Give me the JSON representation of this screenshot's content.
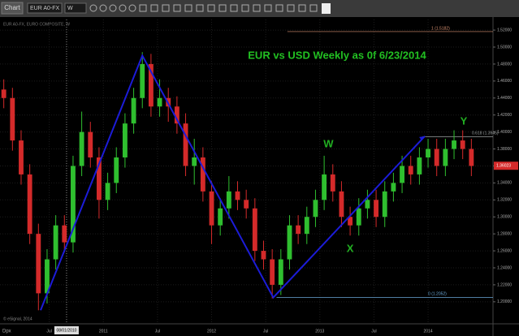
{
  "toolbar": {
    "tab": "Chart",
    "symbol": "EUR A0-FX",
    "interval": "W",
    "corner": "Dpx"
  },
  "chart_data": {
    "type": "candlestick",
    "title": "EUR vs USD Weekly as 0f 6/23/2014",
    "info": "EUR A0-FX, EURO COMPOSITE, W",
    "copyright": "© eSignal, 2014",
    "crosshair": {
      "x": 2010.66,
      "label": "08/01/2010"
    },
    "up_color": "#2fbf2f",
    "down_color": "#d42a2a",
    "x": [
      2010.08,
      2010.16,
      2010.24,
      2010.32,
      2010.4,
      2010.48,
      2010.56,
      2010.64,
      2010.72,
      2010.8,
      2010.88,
      2010.96,
      2011.04,
      2011.12,
      2011.2,
      2011.28,
      2011.36,
      2011.44,
      2011.52,
      2011.6,
      2011.68,
      2011.76,
      2011.84,
      2011.92,
      2012.0,
      2012.08,
      2012.16,
      2012.24,
      2012.32,
      2012.4,
      2012.48,
      2012.56,
      2012.64,
      2012.72,
      2012.8,
      2012.88,
      2012.96,
      2013.04,
      2013.12,
      2013.2,
      2013.28,
      2013.36,
      2013.44,
      2013.52,
      2013.6,
      2013.68,
      2013.76,
      2013.84,
      2013.92,
      2014.0,
      2014.08,
      2014.16,
      2014.24,
      2014.32,
      2014.4
    ],
    "open": [
      1.45,
      1.44,
      1.39,
      1.35,
      1.28,
      1.21,
      1.25,
      1.29,
      1.27,
      1.36,
      1.4,
      1.37,
      1.32,
      1.34,
      1.37,
      1.41,
      1.44,
      1.48,
      1.43,
      1.44,
      1.43,
      1.41,
      1.36,
      1.37,
      1.33,
      1.29,
      1.31,
      1.33,
      1.32,
      1.31,
      1.26,
      1.25,
      1.22,
      1.25,
      1.29,
      1.28,
      1.3,
      1.32,
      1.35,
      1.33,
      1.3,
      1.29,
      1.31,
      1.32,
      1.3,
      1.33,
      1.34,
      1.36,
      1.35,
      1.37,
      1.38,
      1.36,
      1.38,
      1.39,
      1.38
    ],
    "high": [
      1.462,
      1.452,
      1.402,
      1.362,
      1.292,
      1.262,
      1.302,
      1.302,
      1.372,
      1.424,
      1.412,
      1.382,
      1.352,
      1.382,
      1.422,
      1.452,
      1.494,
      1.492,
      1.462,
      1.452,
      1.442,
      1.422,
      1.392,
      1.382,
      1.342,
      1.322,
      1.348,
      1.342,
      1.332,
      1.322,
      1.272,
      1.262,
      1.262,
      1.302,
      1.302,
      1.312,
      1.332,
      1.372,
      1.362,
      1.342,
      1.312,
      1.322,
      1.332,
      1.332,
      1.342,
      1.352,
      1.372,
      1.372,
      1.382,
      1.392,
      1.392,
      1.392,
      1.402,
      1.402,
      1.392
    ],
    "low": [
      1.428,
      1.378,
      1.338,
      1.268,
      1.19,
      1.198,
      1.238,
      1.258,
      1.258,
      1.348,
      1.358,
      1.298,
      1.308,
      1.328,
      1.358,
      1.398,
      1.428,
      1.418,
      1.418,
      1.412,
      1.398,
      1.348,
      1.338,
      1.318,
      1.268,
      1.278,
      1.298,
      1.308,
      1.298,
      1.248,
      1.238,
      1.204,
      1.208,
      1.238,
      1.268,
      1.268,
      1.288,
      1.308,
      1.318,
      1.288,
      1.278,
      1.278,
      1.298,
      1.288,
      1.288,
      1.318,
      1.328,
      1.338,
      1.338,
      1.358,
      1.348,
      1.348,
      1.368,
      1.368,
      1.348
    ],
    "close": [
      1.44,
      1.39,
      1.35,
      1.28,
      1.21,
      1.25,
      1.29,
      1.27,
      1.36,
      1.4,
      1.37,
      1.32,
      1.34,
      1.37,
      1.41,
      1.44,
      1.48,
      1.43,
      1.44,
      1.43,
      1.41,
      1.36,
      1.37,
      1.33,
      1.29,
      1.31,
      1.33,
      1.32,
      1.31,
      1.26,
      1.25,
      1.22,
      1.25,
      1.29,
      1.28,
      1.3,
      1.32,
      1.35,
      1.33,
      1.3,
      1.29,
      1.31,
      1.32,
      1.3,
      1.33,
      1.34,
      1.36,
      1.35,
      1.37,
      1.38,
      1.36,
      1.38,
      1.39,
      1.38,
      1.36
    ],
    "last_price": 1.36023,
    "trend_line": {
      "color": "#1c1cd8",
      "x": [
        2010.42,
        2011.36,
        2012.57,
        2013.97
      ],
      "y": [
        1.19,
        1.49,
        1.205,
        1.395
      ]
    },
    "levels": [
      {
        "value": 1.5182,
        "label": "1 (1.5182)",
        "color": "#d89070",
        "x_start": 2012.7
      },
      {
        "value": 1.3945,
        "label": "0.618 (1.3945)",
        "color": "#9aa0a0",
        "x_start": 2013.95
      },
      {
        "value": 1.2052,
        "label": "0 (1.2052)",
        "color": "#6aa8d8",
        "x_start": 2012.6
      }
    ],
    "annotations": [
      {
        "text": "W",
        "x": 2013.08,
        "y": 1.385
      },
      {
        "text": "X",
        "x": 2013.28,
        "y": 1.262
      },
      {
        "text": "Y",
        "x": 2014.33,
        "y": 1.412
      }
    ],
    "xlim": [
      2010.045,
      2014.6
    ],
    "ylim": [
      1.175,
      1.5325
    ],
    "xticks": [
      {
        "value": 2010.5,
        "label": "Jul"
      },
      2011,
      {
        "value": 2011.5,
        "label": "Jul"
      },
      2012,
      {
        "value": 2012.5,
        "label": "Jul"
      },
      2013,
      {
        "value": 2013.5,
        "label": "Jul"
      },
      2014
    ],
    "yticks": [
      {
        "value": 1.2,
        "label": "1.20000"
      },
      {
        "value": 1.22,
        "label": "1.22000"
      },
      {
        "value": 1.24,
        "label": "1.24000"
      },
      {
        "value": 1.26,
        "label": "1.26000"
      },
      {
        "value": 1.28,
        "label": "1.28000"
      },
      {
        "value": 1.3,
        "label": "1.30000"
      },
      {
        "value": 1.32,
        "label": "1.32000"
      },
      {
        "value": 1.34,
        "label": "1.34000"
      },
      {
        "value": 1.36,
        "label": "1.36000"
      },
      {
        "value": 1.38,
        "label": "1.38000"
      },
      {
        "value": 1.4,
        "label": "1.40000"
      },
      {
        "value": 1.42,
        "label": "1.42000"
      },
      {
        "value": 1.44,
        "label": "1.44000"
      },
      {
        "value": 1.46,
        "label": "1.46000"
      },
      {
        "value": 1.48,
        "label": "1.48000"
      },
      {
        "value": 1.5,
        "label": "1.50000"
      },
      {
        "value": 1.52,
        "label": "1.52000"
      }
    ],
    "grid": true
  }
}
